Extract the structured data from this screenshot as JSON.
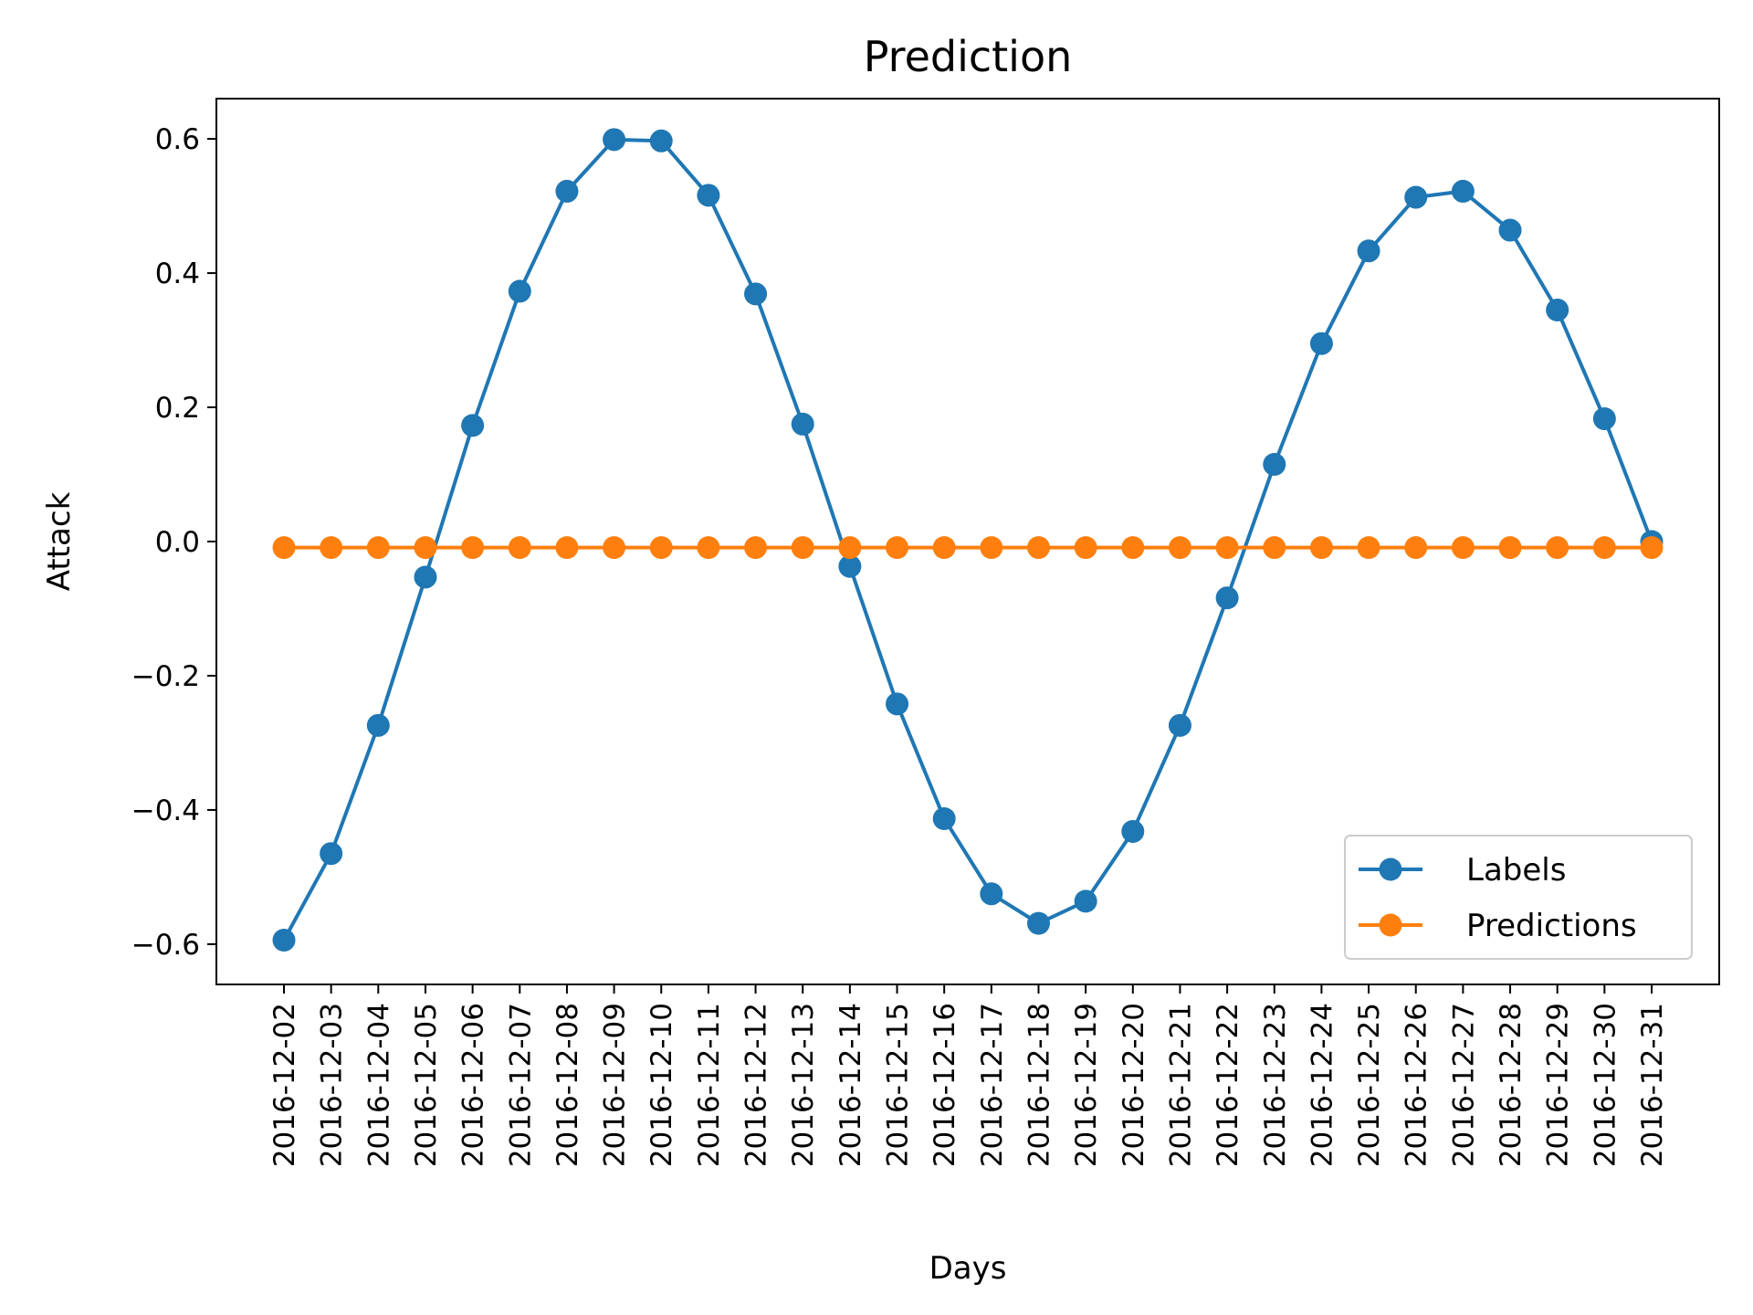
{
  "chart_data": {
    "type": "line",
    "title": "Prediction",
    "xlabel": "Days",
    "ylabel": "Attack",
    "x": [
      "2016-12-02",
      "2016-12-03",
      "2016-12-04",
      "2016-12-05",
      "2016-12-06",
      "2016-12-07",
      "2016-12-08",
      "2016-12-09",
      "2016-12-10",
      "2016-12-11",
      "2016-12-12",
      "2016-12-13",
      "2016-12-14",
      "2016-12-15",
      "2016-12-16",
      "2016-12-17",
      "2016-12-18",
      "2016-12-19",
      "2016-12-20",
      "2016-12-21",
      "2016-12-22",
      "2016-12-23",
      "2016-12-24",
      "2016-12-25",
      "2016-12-26",
      "2016-12-27",
      "2016-12-28",
      "2016-12-29",
      "2016-12-30",
      "2016-12-31"
    ],
    "ylim": [
      -0.66,
      0.66
    ],
    "yticks": [
      -0.6,
      -0.4,
      -0.2,
      0.0,
      0.2,
      0.4,
      0.6
    ],
    "ytick_labels": [
      "−0.6",
      "−0.4",
      "−0.2",
      "0.0",
      "0.2",
      "0.4",
      "0.6"
    ],
    "grid": false,
    "legend_position": "lower-right",
    "series": [
      {
        "name": "Labels",
        "color": "#1f77b4",
        "marker": "circle",
        "values": [
          -0.594,
          -0.465,
          -0.274,
          -0.053,
          0.173,
          0.373,
          0.522,
          0.599,
          0.597,
          0.516,
          0.369,
          0.175,
          -0.037,
          -0.242,
          -0.413,
          -0.525,
          -0.569,
          -0.536,
          -0.432,
          -0.274,
          -0.084,
          0.115,
          0.295,
          0.433,
          0.513,
          0.522,
          0.464,
          0.345,
          0.183,
          0.0
        ]
      },
      {
        "name": "Predictions",
        "color": "#ff7f0e",
        "marker": "circle",
        "values": [
          -0.009,
          -0.009,
          -0.009,
          -0.009,
          -0.009,
          -0.009,
          -0.009,
          -0.009,
          -0.009,
          -0.009,
          -0.009,
          -0.009,
          -0.009,
          -0.009,
          -0.009,
          -0.009,
          -0.009,
          -0.009,
          -0.009,
          -0.009,
          -0.009,
          -0.009,
          -0.009,
          -0.009,
          -0.009,
          -0.009,
          -0.009,
          -0.009,
          -0.009,
          -0.009
        ]
      }
    ]
  }
}
